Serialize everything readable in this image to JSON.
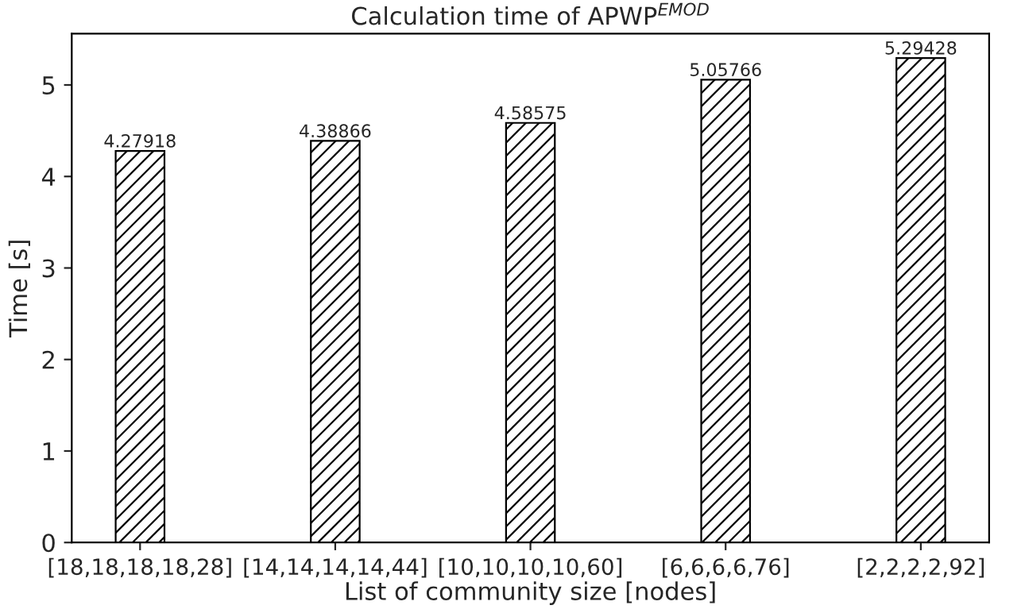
{
  "chart_data": {
    "type": "bar",
    "title": "Calculation time of APWP$^{EMOD}$",
    "xlabel": "List of community size [nodes]",
    "ylabel": "Time [s]",
    "categories": [
      "[18,18,18,18,28]",
      "[14,14,14,14,44]",
      "[10,10,10,10,60]",
      "[6,6,6,6,76]",
      "[2,2,2,2,92]"
    ],
    "values": [
      4.27918,
      4.38866,
      4.58575,
      5.05766,
      5.29428
    ],
    "color": "#000000",
    "ylim": [
      0,
      5.56
    ],
    "yticks": [
      0,
      1,
      2,
      3,
      4,
      5
    ],
    "grid": false,
    "data_labels": true
  }
}
